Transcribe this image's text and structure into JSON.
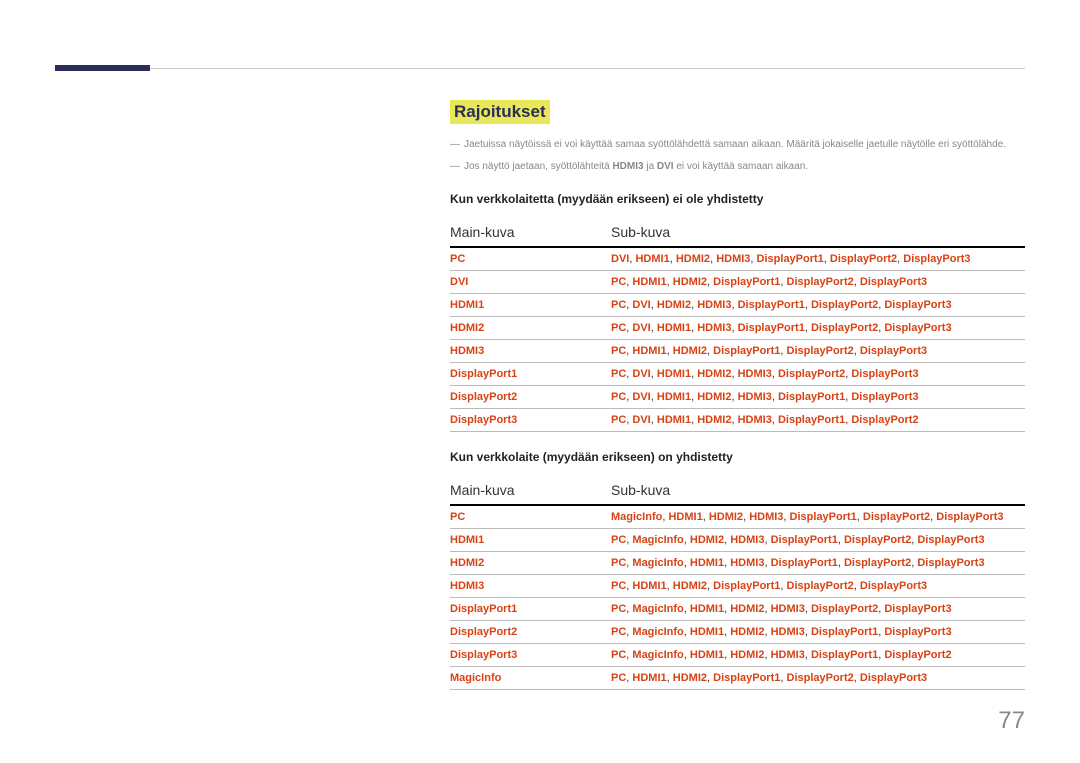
{
  "page_number": "77",
  "section_title": "Rajoitukset",
  "notes": [
    {
      "text": "Jaetuissa näytöissä ei voi käyttää samaa syöttölähdettä samaan aikaan. Määritä jokaiselle jaetulle näytölle eri syöttölähde."
    },
    {
      "prefix": "Jos näyttö jaetaan, syöttölähteitä ",
      "kw1": "HDMI3",
      "mid": " ja ",
      "kw2": "DVI",
      "suffix": " ei voi käyttää samaan aikaan."
    }
  ],
  "table1": {
    "heading": "Kun verkkolaitetta (myydään erikseen) ei ole yhdistetty",
    "col1": "Main-kuva",
    "col2": "Sub-kuva",
    "rows": [
      {
        "main": "PC",
        "sub": [
          "DVI",
          "HDMI1",
          "HDMI2",
          "HDMI3",
          "DisplayPort1",
          "DisplayPort2",
          "DisplayPort3"
        ]
      },
      {
        "main": "DVI",
        "sub": [
          "PC",
          "HDMI1",
          "HDMI2",
          "DisplayPort1",
          "DisplayPort2",
          "DisplayPort3"
        ]
      },
      {
        "main": "HDMI1",
        "sub": [
          "PC",
          "DVI",
          "HDMI2",
          "HDMI3",
          "DisplayPort1",
          "DisplayPort2",
          "DisplayPort3"
        ]
      },
      {
        "main": "HDMI2",
        "sub": [
          "PC",
          "DVI",
          "HDMI1",
          "HDMI3",
          "DisplayPort1",
          "DisplayPort2",
          "DisplayPort3"
        ]
      },
      {
        "main": "HDMI3",
        "sub": [
          "PC",
          "HDMI1",
          "HDMI2",
          "DisplayPort1",
          "DisplayPort2",
          "DisplayPort3"
        ]
      },
      {
        "main": "DisplayPort1",
        "sub": [
          "PC",
          "DVI",
          "HDMI1",
          "HDMI2",
          "HDMI3",
          "DisplayPort2",
          "DisplayPort3"
        ]
      },
      {
        "main": "DisplayPort2",
        "sub": [
          "PC",
          "DVI",
          "HDMI1",
          "HDMI2",
          "HDMI3",
          "DisplayPort1",
          "DisplayPort3"
        ]
      },
      {
        "main": "DisplayPort3",
        "sub": [
          "PC",
          "DVI",
          "HDMI1",
          "HDMI2",
          "HDMI3",
          "DisplayPort1",
          "DisplayPort2"
        ]
      }
    ]
  },
  "table2": {
    "heading": "Kun verkkolaite (myydään erikseen) on yhdistetty",
    "col1": "Main-kuva",
    "col2": "Sub-kuva",
    "rows": [
      {
        "main": "PC",
        "sub": [
          "MagicInfo",
          "HDMI1",
          "HDMI2",
          "HDMI3",
          "DisplayPort1",
          "DisplayPort2",
          "DisplayPort3"
        ]
      },
      {
        "main": "HDMI1",
        "sub": [
          "PC",
          "MagicInfo",
          "HDMI2",
          "HDMI3",
          "DisplayPort1",
          "DisplayPort2",
          "DisplayPort3"
        ]
      },
      {
        "main": "HDMI2",
        "sub": [
          "PC",
          "MagicInfo",
          "HDMI1",
          "HDMI3",
          "DisplayPort1",
          "DisplayPort2",
          "DisplayPort3"
        ]
      },
      {
        "main": "HDMI3",
        "sub": [
          "PC",
          "HDMI1",
          "HDMI2",
          "DisplayPort1",
          "DisplayPort2",
          "DisplayPort3"
        ]
      },
      {
        "main": "DisplayPort1",
        "sub": [
          "PC",
          "MagicInfo",
          "HDMI1",
          "HDMI2",
          "HDMI3",
          "DisplayPort2",
          "DisplayPort3"
        ]
      },
      {
        "main": "DisplayPort2",
        "sub": [
          "PC",
          "MagicInfo",
          "HDMI1",
          "HDMI2",
          "HDMI3",
          "DisplayPort1",
          "DisplayPort3"
        ]
      },
      {
        "main": "DisplayPort3",
        "sub": [
          "PC",
          "MagicInfo",
          "HDMI1",
          "HDMI2",
          "HDMI3",
          "DisplayPort1",
          "DisplayPort2"
        ]
      },
      {
        "main": "MagicInfo",
        "sub": [
          "PC",
          "HDMI1",
          "HDMI2",
          "DisplayPort1",
          "DisplayPort2",
          "DisplayPort3"
        ]
      }
    ]
  }
}
